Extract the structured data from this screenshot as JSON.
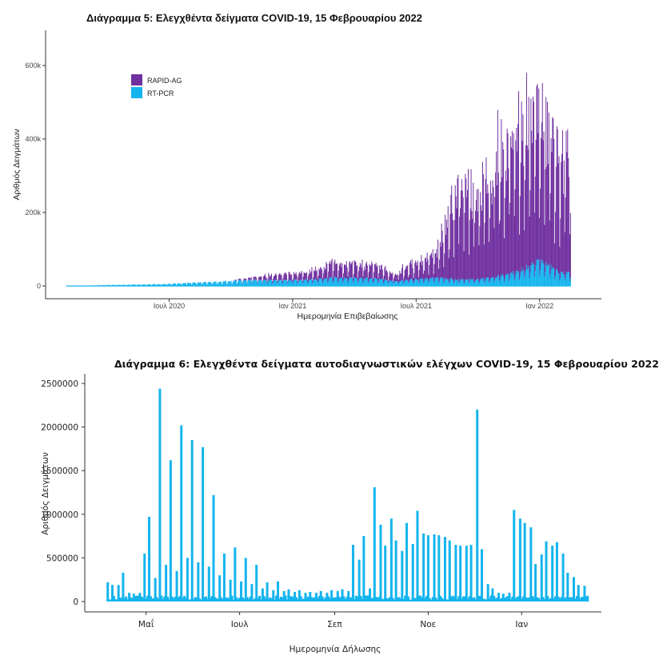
{
  "chart_data": [
    {
      "type": "area",
      "title": "Διάγραμμα 5: Ελεγχθέντα δείγματα COVID-19, 15 Φεβρουαρίου 2022",
      "xlabel": "Ημερομηνία Επιβεβαίωσης",
      "ylabel": "Αριθμός Δειγμάτων",
      "x_range": [
        "2020-02",
        "2022-02-15"
      ],
      "ylim": [
        0,
        680000
      ],
      "y_ticks": [
        0,
        200000,
        400000,
        600000
      ],
      "y_tick_labels": [
        "0",
        "200k",
        "400k",
        "600k"
      ],
      "x_ticks": [
        "2020-07",
        "2021-01",
        "2021-07",
        "2022-01"
      ],
      "x_tick_labels": [
        "Ιουλ 2020",
        "Ιαν 2021",
        "Ιουλ 2021",
        "Ιαν 2022"
      ],
      "legend_position": "top-left",
      "stacked": true,
      "grid": false,
      "series": [
        {
          "name": "RAPID-AG",
          "color": "#7030A0",
          "monthly_peak_values": [
            [
              "2020-02",
              0
            ],
            [
              "2020-03",
              0
            ],
            [
              "2020-04",
              0
            ],
            [
              "2020-05",
              0
            ],
            [
              "2020-06",
              0
            ],
            [
              "2020-07",
              0
            ],
            [
              "2020-08",
              0
            ],
            [
              "2020-09",
              0
            ],
            [
              "2020-10",
              0
            ],
            [
              "2020-11",
              10000
            ],
            [
              "2020-12",
              20000
            ],
            [
              "2021-01",
              25000
            ],
            [
              "2021-02",
              35000
            ],
            [
              "2021-03",
              55000
            ],
            [
              "2021-04",
              55000
            ],
            [
              "2021-05",
              50000
            ],
            [
              "2021-06",
              30000
            ],
            [
              "2021-07",
              70000
            ],
            [
              "2021-08",
              90000
            ],
            [
              "2021-09",
              370000
            ],
            [
              "2021-10",
              300000
            ],
            [
              "2021-11",
              460000
            ],
            [
              "2021-12",
              570000
            ],
            [
              "2022-01",
              560000
            ],
            [
              "2022-02",
              420000
            ]
          ]
        },
        {
          "name": "RT-PCR",
          "color": "#14B4EE",
          "monthly_peak_values": [
            [
              "2020-02",
              100
            ],
            [
              "2020-03",
              1000
            ],
            [
              "2020-04",
              3000
            ],
            [
              "2020-05",
              4000
            ],
            [
              "2020-06",
              5000
            ],
            [
              "2020-07",
              7000
            ],
            [
              "2020-08",
              10000
            ],
            [
              "2020-09",
              12000
            ],
            [
              "2020-10",
              15000
            ],
            [
              "2020-11",
              20000
            ],
            [
              "2020-12",
              18000
            ],
            [
              "2021-01",
              18000
            ],
            [
              "2021-02",
              20000
            ],
            [
              "2021-03",
              25000
            ],
            [
              "2021-04",
              25000
            ],
            [
              "2021-05",
              22000
            ],
            [
              "2021-06",
              15000
            ],
            [
              "2021-07",
              22000
            ],
            [
              "2021-08",
              25000
            ],
            [
              "2021-09",
              20000
            ],
            [
              "2021-10",
              20000
            ],
            [
              "2021-11",
              30000
            ],
            [
              "2021-12",
              45000
            ],
            [
              "2022-01",
              80000
            ],
            [
              "2022-02",
              40000
            ]
          ]
        }
      ]
    },
    {
      "type": "bar",
      "title": "Διάγραμμα 6: Ελεγχθέντα δείγματα αυτοδιαγνωστικών ελέγχων COVID-19, 15 Φεβρουαρίου 2022",
      "xlabel": "Ημερομηνία Δήλωσης",
      "ylabel": "Αριθμός Δειγμάτων",
      "ylim": [
        0,
        2500000
      ],
      "y_ticks": [
        0,
        500000,
        1000000,
        1500000,
        2000000,
        2500000
      ],
      "y_tick_labels": [
        "0",
        "500000",
        "1000000",
        "1500000",
        "2000000",
        "2500000"
      ],
      "x_range": [
        "2021-04-05",
        "2022-02-14"
      ],
      "x_ticks": [
        "2021-05-01",
        "2021-07-01",
        "2021-09-01",
        "2021-11-01",
        "2022-01-01"
      ],
      "x_tick_labels": [
        "Μαΐ",
        "Ιουλ",
        "Σεπ",
        "Νοε",
        "Ιαν"
      ],
      "grid": false,
      "series": [
        {
          "name": "",
          "color": "#14B4EE",
          "weekly_spike_values": [
            [
              "2021-04-06",
              220000
            ],
            [
              "2021-04-09",
              190000
            ],
            [
              "2021-04-13",
              190000
            ],
            [
              "2021-04-16",
              330000
            ],
            [
              "2021-04-20",
              100000
            ],
            [
              "2021-04-23",
              90000
            ],
            [
              "2021-04-27",
              100000
            ],
            [
              "2021-04-30",
              550000
            ],
            [
              "2021-05-03",
              970000
            ],
            [
              "2021-05-07",
              270000
            ],
            [
              "2021-05-10",
              2440000
            ],
            [
              "2021-05-14",
              420000
            ],
            [
              "2021-05-17",
              1620000
            ],
            [
              "2021-05-21",
              350000
            ],
            [
              "2021-05-24",
              2020000
            ],
            [
              "2021-05-28",
              500000
            ],
            [
              "2021-05-31",
              1850000
            ],
            [
              "2021-06-04",
              450000
            ],
            [
              "2021-06-07",
              1770000
            ],
            [
              "2021-06-11",
              400000
            ],
            [
              "2021-06-14",
              1220000
            ],
            [
              "2021-06-18",
              300000
            ],
            [
              "2021-06-21",
              550000
            ],
            [
              "2021-06-25",
              250000
            ],
            [
              "2021-06-28",
              620000
            ],
            [
              "2021-07-02",
              230000
            ],
            [
              "2021-07-05",
              500000
            ],
            [
              "2021-07-09",
              200000
            ],
            [
              "2021-07-12",
              420000
            ],
            [
              "2021-07-16",
              150000
            ],
            [
              "2021-07-19",
              220000
            ],
            [
              "2021-07-23",
              130000
            ],
            [
              "2021-07-26",
              230000
            ],
            [
              "2021-07-30",
              120000
            ],
            [
              "2021-08-02",
              140000
            ],
            [
              "2021-08-06",
              110000
            ],
            [
              "2021-08-09",
              130000
            ],
            [
              "2021-08-13",
              100000
            ],
            [
              "2021-08-16",
              110000
            ],
            [
              "2021-08-20",
              100000
            ],
            [
              "2021-08-23",
              120000
            ],
            [
              "2021-08-27",
              100000
            ],
            [
              "2021-08-30",
              130000
            ],
            [
              "2021-09-03",
              120000
            ],
            [
              "2021-09-06",
              140000
            ],
            [
              "2021-09-10",
              120000
            ],
            [
              "2021-09-13",
              650000
            ],
            [
              "2021-09-17",
              480000
            ],
            [
              "2021-09-20",
              750000
            ],
            [
              "2021-09-24",
              150000
            ],
            [
              "2021-09-27",
              1310000
            ],
            [
              "2021-10-01",
              880000
            ],
            [
              "2021-10-04",
              640000
            ],
            [
              "2021-10-08",
              950000
            ],
            [
              "2021-10-11",
              700000
            ],
            [
              "2021-10-15",
              580000
            ],
            [
              "2021-10-18",
              900000
            ],
            [
              "2021-10-22",
              660000
            ],
            [
              "2021-10-25",
              1040000
            ],
            [
              "2021-10-29",
              780000
            ],
            [
              "2021-11-01",
              760000
            ],
            [
              "2021-11-05",
              770000
            ],
            [
              "2021-11-08",
              760000
            ],
            [
              "2021-11-12",
              740000
            ],
            [
              "2021-11-15",
              700000
            ],
            [
              "2021-11-19",
              650000
            ],
            [
              "2021-11-22",
              640000
            ],
            [
              "2021-11-26",
              640000
            ],
            [
              "2021-11-29",
              650000
            ],
            [
              "2021-12-03",
              2200000
            ],
            [
              "2021-12-06",
              600000
            ],
            [
              "2021-12-10",
              200000
            ],
            [
              "2021-12-13",
              150000
            ],
            [
              "2021-12-17",
              100000
            ],
            [
              "2021-12-20",
              90000
            ],
            [
              "2021-12-24",
              100000
            ],
            [
              "2021-12-27",
              1050000
            ],
            [
              "2021-12-31",
              950000
            ],
            [
              "2022-01-03",
              900000
            ],
            [
              "2022-01-07",
              850000
            ],
            [
              "2022-01-10",
              430000
            ],
            [
              "2022-01-14",
              540000
            ],
            [
              "2022-01-17",
              690000
            ],
            [
              "2022-01-21",
              640000
            ],
            [
              "2022-01-24",
              680000
            ],
            [
              "2022-01-28",
              550000
            ],
            [
              "2022-01-31",
              330000
            ],
            [
              "2022-02-04",
              280000
            ],
            [
              "2022-02-07",
              190000
            ],
            [
              "2022-02-11",
              180000
            ]
          ]
        }
      ]
    }
  ]
}
